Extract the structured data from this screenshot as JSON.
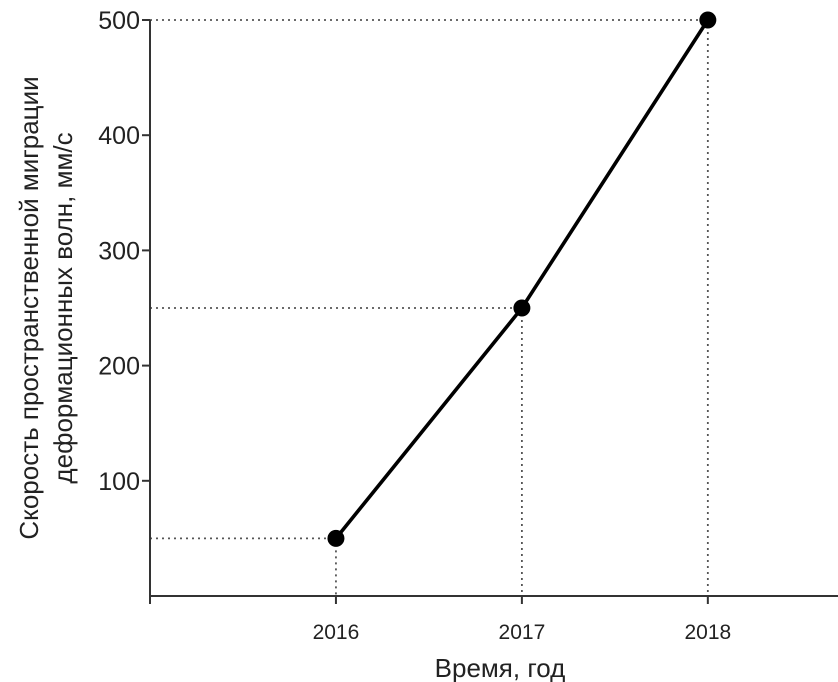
{
  "chart_data": {
    "type": "line",
    "x": [
      2016,
      2017,
      2018
    ],
    "series": [
      {
        "values": [
          50,
          250,
          500
        ]
      }
    ],
    "xticks": [
      "2016",
      "2017",
      "2018"
    ],
    "yticks": [
      100,
      200,
      300,
      400,
      500
    ],
    "ytick_labels": [
      "100",
      "200",
      "300",
      "400",
      "500"
    ],
    "xlabel": "Время, год",
    "ylabel_line1": "Скорость пространственной миграции",
    "ylabel_line2": "деформационных волн, мм/с",
    "ylim": [
      0,
      500
    ],
    "xlim": [
      2015,
      2018.7
    ],
    "grid": false,
    "guides": "dotted lines from each point to both axes",
    "line_color": "#000000",
    "axis_color": "#333333"
  }
}
